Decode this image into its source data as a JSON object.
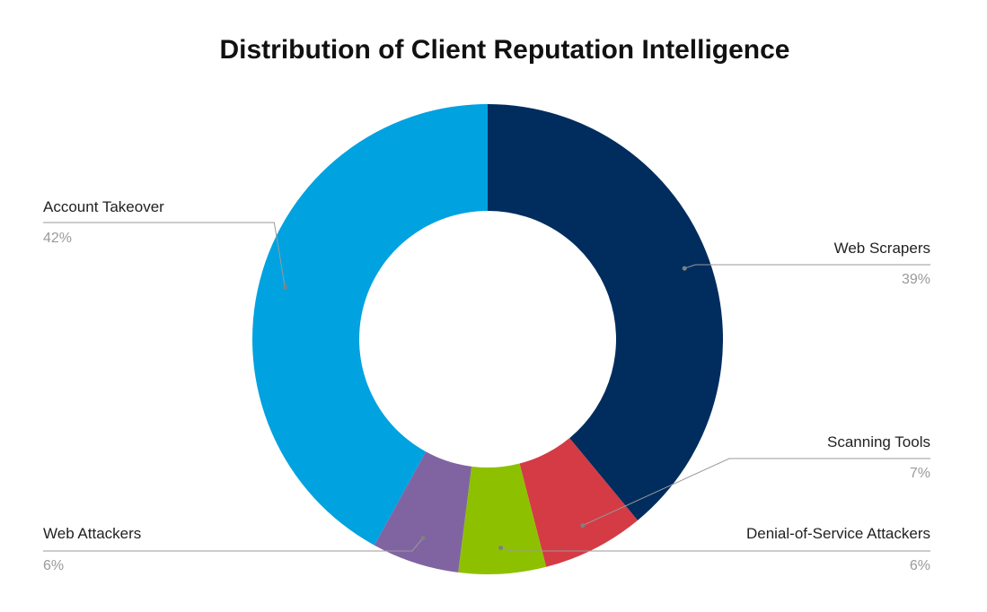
{
  "chart_data": {
    "type": "pie",
    "style": "donut",
    "title": "Distribution of Client Reputation Intelligence",
    "slices": [
      {
        "label": "Web Scrapers",
        "value": 39,
        "value_label": "39%",
        "color": "#002d5e"
      },
      {
        "label": "Scanning Tools",
        "value": 7,
        "value_label": "7%",
        "color": "#d43b44"
      },
      {
        "label": "Denial-of-Service Attackers",
        "value": 6,
        "value_label": "6%",
        "color": "#8dc100"
      },
      {
        "label": "Web Attackers",
        "value": 6,
        "value_label": "6%",
        "color": "#8064a2"
      },
      {
        "label": "Account Takeover",
        "value": 42,
        "value_label": "42%",
        "color": "#00a2e0"
      }
    ],
    "legend": "none"
  }
}
